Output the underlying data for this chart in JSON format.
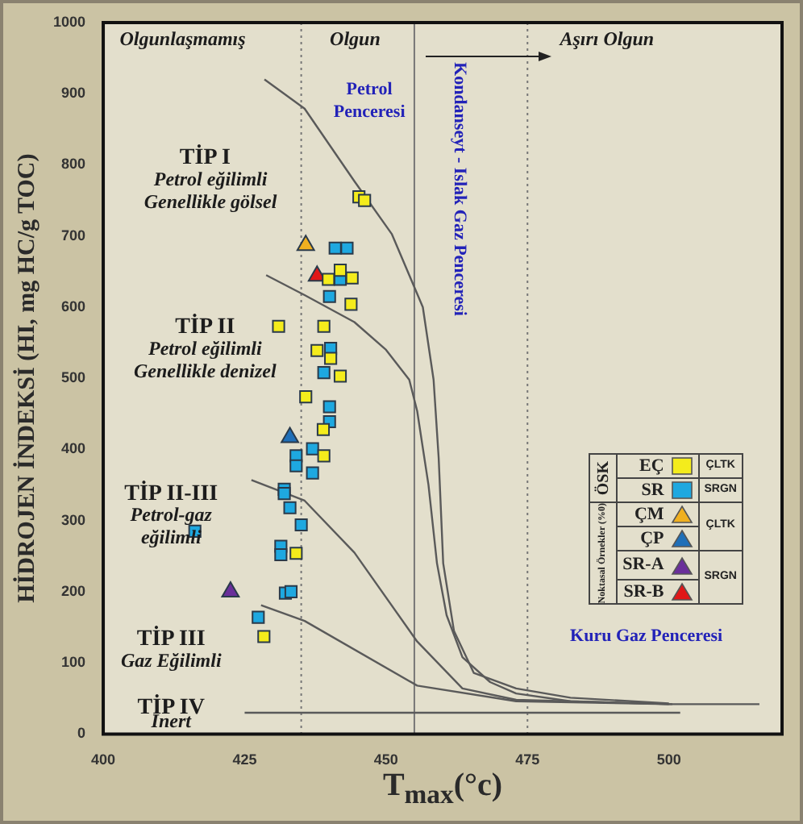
{
  "chart_data": {
    "type": "scatter",
    "xlabel": "T$_{max}$(°c)",
    "ylabel": "HİDROJEN İNDEKSİ (HI, mg HC/g TOC)",
    "xlim": [
      400,
      520
    ],
    "xticks": [
      400,
      425,
      450,
      475,
      500
    ],
    "ylim": [
      0,
      1000
    ],
    "yticks": [
      0,
      100,
      200,
      300,
      400,
      500,
      600,
      700,
      800,
      900,
      1000
    ],
    "legend": "right",
    "series": [
      {
        "type": "line",
        "marker": "none",
        "color": "#5a5a5a",
        "x": [
          428.5,
          435.6,
          444.4,
          451,
          456.5,
          458.4,
          459.3,
          460.1,
          462,
          465.5,
          473,
          482.6,
          500
        ],
        "values": [
          920,
          879,
          777,
          703,
          600,
          498,
          388,
          240,
          145,
          86,
          64,
          51,
          43
        ]
      },
      {
        "type": "line",
        "marker": "none",
        "color": "#5a5a5a",
        "x": [
          428.8,
          435.6,
          444.4,
          450,
          454.1,
          455.5,
          457.5,
          459,
          460.7,
          463.5,
          468.4,
          473,
          482.6,
          500,
          516
        ],
        "values": [
          645,
          617,
          579,
          540,
          498,
          454,
          350,
          240,
          167,
          108,
          73,
          57,
          46,
          42,
          42
        ]
      },
      {
        "type": "line",
        "marker": "none",
        "color": "#5a5a5a",
        "x": [
          426.2,
          435.6,
          444.4,
          455.5,
          463.5,
          473,
          500.6
        ],
        "values": [
          357,
          328,
          255,
          130,
          64,
          48,
          42
        ]
      },
      {
        "type": "line",
        "marker": "none",
        "color": "#5a5a5a",
        "x": [
          427.9,
          435.6,
          455.5,
          473,
          500
        ],
        "values": [
          181,
          159,
          68,
          46,
          42
        ]
      },
      {
        "type": "line",
        "marker": "none",
        "color": "#5a5a5a",
        "x": [
          425,
          502
        ],
        "values": [
          30,
          30
        ]
      },
      {
        "name": "EÇ",
        "type": "scatter",
        "marker": "square",
        "color": "#f4ec1c",
        "x": [
          445.2,
          446.2,
          441.9,
          439.8,
          444,
          443.8,
          431,
          439,
          437.8,
          440.2,
          441.9,
          435.8,
          438.9,
          439,
          434.1,
          428.4
        ],
        "values": [
          755,
          750,
          652,
          639,
          641,
          604,
          573,
          573,
          539,
          528,
          503,
          474,
          428,
          391,
          254,
          137
        ]
      },
      {
        "name": "SR",
        "type": "scatter",
        "marker": "square",
        "color": "#1ea8e0",
        "x": [
          441,
          443.1,
          441.9,
          440,
          440.2,
          439,
          440,
          440,
          437,
          434.1,
          434.1,
          437,
          432,
          432,
          433,
          435,
          416.2,
          431.4,
          431.4,
          432.2,
          433.2,
          427.4
        ],
        "values": [
          683,
          683,
          639,
          615,
          542,
          508,
          460,
          439,
          401,
          391,
          377,
          367,
          344,
          338,
          318,
          294,
          285,
          264,
          252,
          198,
          200,
          164
        ]
      },
      {
        "name": "ÇM",
        "type": "scatter",
        "marker": "triangle",
        "color": "#f0b020",
        "x": [
          435.8
        ],
        "values": [
          687
        ]
      },
      {
        "name": "ÇP",
        "type": "scatter",
        "marker": "triangle",
        "color": "#1f6fb8",
        "x": [
          433
        ],
        "values": [
          417
        ]
      },
      {
        "name": "SR-A",
        "type": "scatter",
        "marker": "triangle",
        "color": "#6a2f9a",
        "x": [
          422.5
        ],
        "values": [
          200
        ]
      },
      {
        "name": "SR-B",
        "type": "scatter",
        "marker": "triangle",
        "color": "#e01818",
        "x": [
          437.8
        ],
        "values": [
          644
        ]
      }
    ],
    "ref_lines": [
      {
        "axis": "x",
        "value": 435,
        "line_style": "dotted"
      },
      {
        "axis": "x",
        "value": 455,
        "line_style": "solid"
      },
      {
        "axis": "x",
        "value": 475,
        "line_style": "dotted"
      }
    ],
    "annotations": [
      "Olgunlaşmamış",
      "Olgun",
      "Aşırı Olgun",
      "Petrol\nPenceresi",
      "Kondanseyt - Islak Gaz Penceresi",
      "Kuru Gaz Penceresi",
      "TİP I",
      "Petrol eğilimli\nGenellikle gölsel",
      "TİP II",
      "Petrol eğilimli\nGenellikle denizel",
      "TİP II-III",
      "Petrol-gaz\neğilimli",
      "TİP III",
      "Gaz Eğilimli",
      "TİP IV",
      "İnert",
      "ÖSK",
      "Noktasal Örnekler (%0)",
      "ÇLTK",
      "SRGN",
      "ÇLTK",
      "SRGN"
    ]
  }
}
